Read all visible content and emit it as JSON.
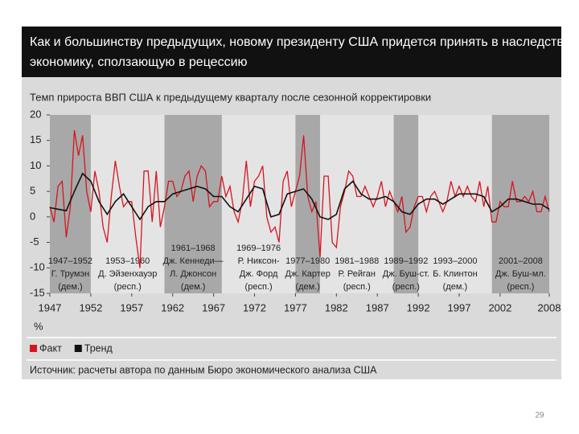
{
  "chart_data": {
    "type": "line",
    "title": [
      "Как и большинству предыдущих, новому президенту США придется принять в наследство",
      "экономику, сползающую в рецессию"
    ],
    "subtitle": "Темп прироста ВВП США к предыдущему кварталу после сезонной корректировки",
    "y_label": "%",
    "xlim": [
      1947,
      2008
    ],
    "xticks": [
      1947,
      1952,
      1957,
      1962,
      1967,
      1972,
      1977,
      1982,
      1987,
      1992,
      1997,
      2002,
      2008
    ],
    "ylim": [
      -15,
      20
    ],
    "yticks": [
      20,
      15,
      10,
      5,
      0,
      -5,
      -10,
      -15
    ],
    "legend": "bottom",
    "series": [
      {
        "name": "Факт",
        "color": "#d7141e",
        "x": [
          1947,
          1947.5,
          1948,
          1948.5,
          1949,
          1949.5,
          1950,
          1950.5,
          1951,
          1951.5,
          1952,
          1952.5,
          1953,
          1953.5,
          1954,
          1954.5,
          1955,
          1955.5,
          1956,
          1956.5,
          1957,
          1957.5,
          1958,
          1958.5,
          1959,
          1959.5,
          1960,
          1960.5,
          1961,
          1961.5,
          1962,
          1962.5,
          1963,
          1963.5,
          1964,
          1964.5,
          1965,
          1965.5,
          1966,
          1966.5,
          1967,
          1967.5,
          1968,
          1968.5,
          1969,
          1969.5,
          1970,
          1970.5,
          1971,
          1971.5,
          1972,
          1972.5,
          1973,
          1973.5,
          1974,
          1974.5,
          1975,
          1975.5,
          1976,
          1976.5,
          1977,
          1977.5,
          1978,
          1978.5,
          1979,
          1979.5,
          1980,
          1980.5,
          1981,
          1981.5,
          1982,
          1982.5,
          1983,
          1983.5,
          1984,
          1984.5,
          1985,
          1985.5,
          1986,
          1986.5,
          1987,
          1987.5,
          1988,
          1988.5,
          1989,
          1989.5,
          1990,
          1990.5,
          1991,
          1991.5,
          1992,
          1992.5,
          1993,
          1993.5,
          1994,
          1994.5,
          1995,
          1995.5,
          1996,
          1996.5,
          1997,
          1997.5,
          1998,
          1998.5,
          1999,
          1999.5,
          2000,
          2000.5,
          2001,
          2001.5,
          2002,
          2002.5,
          2003,
          2003.5,
          2004,
          2004.5,
          2005,
          2005.5,
          2006,
          2006.5,
          2007,
          2007.5,
          2008
        ],
        "values": [
          2,
          -1,
          6,
          7,
          -4,
          2,
          17,
          12,
          16,
          5,
          1,
          9,
          5,
          -2,
          -5,
          4,
          11,
          6,
          2,
          3,
          3,
          -4,
          -10,
          9,
          9,
          -1,
          9,
          -2,
          2,
          7,
          7,
          4,
          5,
          8,
          9,
          3,
          8,
          10,
          9,
          2,
          3,
          3,
          8,
          4,
          6,
          1,
          -1,
          3,
          11,
          2,
          7,
          8,
          10,
          0,
          -3,
          -2,
          -5,
          7,
          9,
          2,
          5,
          8,
          16,
          4,
          1,
          3,
          -8,
          8,
          8,
          -5,
          -6,
          2,
          5,
          9,
          8,
          4,
          4,
          6,
          4,
          2,
          4,
          7,
          2,
          5,
          3,
          1,
          4,
          -3,
          -2,
          2,
          4,
          4,
          1,
          4,
          5,
          3,
          1,
          3,
          7,
          4,
          6,
          4,
          6,
          4,
          3,
          7,
          2,
          6,
          -1,
          -1,
          3,
          2,
          2,
          7,
          3,
          3,
          4,
          3,
          5,
          1,
          1,
          4,
          1
        ]
      },
      {
        "name": "Тренд",
        "color": "#111111",
        "x": [
          1947,
          1948,
          1949,
          1950,
          1951,
          1952,
          1953,
          1954,
          1955,
          1956,
          1957,
          1958,
          1959,
          1960,
          1961,
          1962,
          1963,
          1964,
          1965,
          1966,
          1967,
          1968,
          1969,
          1970,
          1971,
          1972,
          1973,
          1974,
          1975,
          1976,
          1977,
          1978,
          1979,
          1980,
          1981,
          1982,
          1983,
          1984,
          1985,
          1986,
          1987,
          1988,
          1989,
          1990,
          1991,
          1992,
          1993,
          1994,
          1995,
          1996,
          1997,
          1998,
          1999,
          2000,
          2001,
          2002,
          2003,
          2004,
          2005,
          2006,
          2007,
          2008
        ],
        "values": [
          1.8,
          1.5,
          1.2,
          5,
          8.5,
          7,
          3,
          0.5,
          3,
          4.5,
          2,
          -0.5,
          2,
          3,
          3,
          4.5,
          5,
          5.5,
          6,
          5.5,
          4,
          4,
          2,
          1,
          3.5,
          6,
          5.5,
          0,
          0.5,
          4.5,
          5,
          5.5,
          3.5,
          0,
          -0.5,
          0.5,
          5.5,
          7,
          4.5,
          3.5,
          3.5,
          4,
          3,
          1,
          0.5,
          2.5,
          3.5,
          3.5,
          2.5,
          3.5,
          4.5,
          4.5,
          4.5,
          4,
          1,
          2,
          3.5,
          3.5,
          3,
          2.5,
          2.5,
          1.5
        ]
      }
    ],
    "periods": [
      {
        "start": 1947,
        "end": 1952,
        "shaded": true,
        "lines": [
          "1947–1952",
          "Г. Трумэн",
          "(дем.)"
        ]
      },
      {
        "start": 1953,
        "end": 1960,
        "shaded": false,
        "lines": [
          "1953–1960",
          "Д. Эйзенхауэр",
          "(респ.)"
        ]
      },
      {
        "start": 1961,
        "end": 1968,
        "shaded": true,
        "lines": [
          "1961–1968",
          "Дж. Кеннеди—",
          "Л. Джонсон",
          "(дем.)"
        ]
      },
      {
        "start": 1969,
        "end": 1976,
        "shaded": false,
        "lines": [
          "1969–1976",
          "Р. Никсон-",
          "Дж. Форд",
          "(респ.)"
        ]
      },
      {
        "start": 1977,
        "end": 1980,
        "shaded": true,
        "lines": [
          "1977–1980",
          "Дж. Картер",
          "(дем.)"
        ]
      },
      {
        "start": 1981,
        "end": 1988,
        "shaded": false,
        "lines": [
          "1981–1988",
          "Р. Рейган",
          "(респ.)"
        ]
      },
      {
        "start": 1989,
        "end": 1992,
        "shaded": true,
        "lines": [
          "1989–1992",
          "Дж. Буш-ст.",
          "(респ.)"
        ]
      },
      {
        "start": 1993,
        "end": 2000,
        "shaded": false,
        "lines": [
          "1993–2000",
          "Б. Клинтон",
          "(дем.)"
        ]
      },
      {
        "start": 2001,
        "end": 2008,
        "shaded": true,
        "lines": [
          "2001–2008",
          "Дж. Буш-мл.",
          "(респ.)"
        ]
      }
    ],
    "source": "Источник: расчеты автора по данным Бюро экономического анализа США",
    "page_number": "29"
  }
}
